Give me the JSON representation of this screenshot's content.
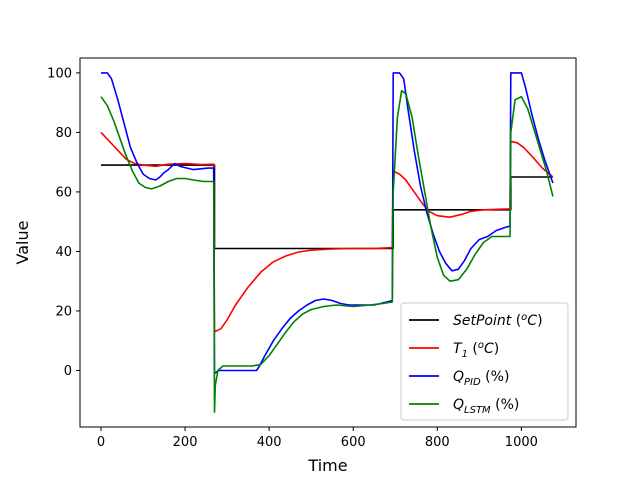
{
  "chart_data": {
    "type": "line",
    "title": "",
    "xlabel": "Time",
    "ylabel": "Value",
    "xlim": [
      -50,
      1130
    ],
    "ylim": [
      -19,
      105
    ],
    "xticks": [
      0,
      200,
      400,
      600,
      800,
      1000
    ],
    "yticks": [
      0,
      20,
      40,
      60,
      80,
      100
    ],
    "legend_position": "bottom-right",
    "series": [
      {
        "key": "setpoint",
        "legend": {
          "main": "SetPoint",
          "sub": "",
          "suffix": " (°C)",
          "sup": "o"
        },
        "color": "#000000",
        "points": [
          [
            0,
            69
          ],
          [
            270,
            69
          ],
          [
            270,
            41
          ],
          [
            695,
            41
          ],
          [
            695,
            54
          ],
          [
            975,
            54
          ],
          [
            975,
            65
          ],
          [
            1075,
            65
          ]
        ]
      },
      {
        "key": "t1",
        "legend": {
          "main": "T",
          "sub": "1",
          "suffix": " (°C)",
          "sup": "o"
        },
        "color": "#ff0000",
        "points": [
          [
            0,
            80
          ],
          [
            20,
            77
          ],
          [
            40,
            74
          ],
          [
            60,
            71
          ],
          [
            80,
            69.5
          ],
          [
            100,
            69
          ],
          [
            130,
            68.6
          ],
          [
            160,
            69.3
          ],
          [
            200,
            69.5
          ],
          [
            240,
            69.2
          ],
          [
            268,
            69.3
          ],
          [
            270,
            13
          ],
          [
            285,
            14
          ],
          [
            300,
            17
          ],
          [
            320,
            22
          ],
          [
            350,
            28
          ],
          [
            380,
            33
          ],
          [
            410,
            36.5
          ],
          [
            440,
            38.5
          ],
          [
            470,
            39.8
          ],
          [
            500,
            40.4
          ],
          [
            550,
            40.8
          ],
          [
            600,
            41
          ],
          [
            650,
            41
          ],
          [
            693,
            41.3
          ],
          [
            695,
            67
          ],
          [
            710,
            66
          ],
          [
            725,
            64
          ],
          [
            745,
            60
          ],
          [
            765,
            56
          ],
          [
            780,
            53.5
          ],
          [
            800,
            52
          ],
          [
            830,
            51.5
          ],
          [
            860,
            52.5
          ],
          [
            880,
            53.5
          ],
          [
            910,
            54
          ],
          [
            950,
            54.2
          ],
          [
            973,
            54.3
          ],
          [
            975,
            77
          ],
          [
            990,
            76.5
          ],
          [
            1005,
            75
          ],
          [
            1025,
            72
          ],
          [
            1050,
            68
          ],
          [
            1075,
            65
          ]
        ]
      },
      {
        "key": "qpid",
        "legend": {
          "main": "Q",
          "sub": "PID",
          "suffix": " (%)",
          "sup": ""
        },
        "color": "#0000ff",
        "points": [
          [
            0,
            100
          ],
          [
            15,
            100
          ],
          [
            25,
            98
          ],
          [
            40,
            91
          ],
          [
            55,
            83
          ],
          [
            70,
            75
          ],
          [
            85,
            70
          ],
          [
            100,
            66
          ],
          [
            115,
            64.5
          ],
          [
            130,
            64
          ],
          [
            140,
            65
          ],
          [
            150,
            66.5
          ],
          [
            160,
            67.5
          ],
          [
            175,
            69.5
          ],
          [
            190,
            68.5
          ],
          [
            205,
            68
          ],
          [
            220,
            67.5
          ],
          [
            240,
            67.8
          ],
          [
            255,
            68
          ],
          [
            268,
            68
          ],
          [
            270,
            -1
          ],
          [
            280,
            0
          ],
          [
            300,
            0
          ],
          [
            330,
            0
          ],
          [
            370,
            0
          ],
          [
            375,
            1
          ],
          [
            390,
            5
          ],
          [
            410,
            10
          ],
          [
            430,
            14
          ],
          [
            450,
            17.5
          ],
          [
            470,
            20
          ],
          [
            490,
            22
          ],
          [
            510,
            23.5
          ],
          [
            530,
            24
          ],
          [
            550,
            23.5
          ],
          [
            570,
            22.5
          ],
          [
            590,
            22
          ],
          [
            620,
            22
          ],
          [
            650,
            22
          ],
          [
            680,
            23
          ],
          [
            693,
            23.5
          ],
          [
            695,
            100
          ],
          [
            710,
            100
          ],
          [
            720,
            98
          ],
          [
            730,
            88
          ],
          [
            745,
            74
          ],
          [
            760,
            62
          ],
          [
            775,
            53
          ],
          [
            790,
            46
          ],
          [
            805,
            40
          ],
          [
            820,
            36
          ],
          [
            835,
            33.5
          ],
          [
            850,
            34
          ],
          [
            865,
            37
          ],
          [
            880,
            41
          ],
          [
            900,
            44
          ],
          [
            920,
            45
          ],
          [
            940,
            47
          ],
          [
            960,
            48
          ],
          [
            973,
            48.5
          ],
          [
            975,
            100
          ],
          [
            1000,
            100
          ],
          [
            1010,
            95
          ],
          [
            1025,
            86
          ],
          [
            1040,
            78
          ],
          [
            1055,
            71
          ],
          [
            1075,
            63
          ]
        ]
      },
      {
        "key": "qlstm",
        "legend": {
          "main": "Q",
          "sub": "LSTM",
          "suffix": " (%)",
          "sup": ""
        },
        "color": "#008000",
        "points": [
          [
            0,
            92
          ],
          [
            15,
            89
          ],
          [
            30,
            84
          ],
          [
            45,
            78
          ],
          [
            60,
            72
          ],
          [
            75,
            67
          ],
          [
            90,
            63
          ],
          [
            105,
            61.5
          ],
          [
            120,
            61
          ],
          [
            140,
            62
          ],
          [
            160,
            63.5
          ],
          [
            180,
            64.5
          ],
          [
            200,
            64.5
          ],
          [
            220,
            64
          ],
          [
            245,
            63.5
          ],
          [
            268,
            63.5
          ],
          [
            270,
            -14
          ],
          [
            272,
            -5
          ],
          [
            278,
            0
          ],
          [
            290,
            1.5
          ],
          [
            320,
            1.5
          ],
          [
            360,
            1.5
          ],
          [
            380,
            2
          ],
          [
            400,
            5
          ],
          [
            420,
            9
          ],
          [
            440,
            13
          ],
          [
            460,
            16.5
          ],
          [
            480,
            19
          ],
          [
            500,
            20.5
          ],
          [
            530,
            21.5
          ],
          [
            560,
            22
          ],
          [
            600,
            21.5
          ],
          [
            640,
            22
          ],
          [
            670,
            22.5
          ],
          [
            693,
            23
          ],
          [
            695,
            60
          ],
          [
            705,
            85
          ],
          [
            715,
            94
          ],
          [
            725,
            93
          ],
          [
            740,
            85
          ],
          [
            755,
            72
          ],
          [
            770,
            60
          ],
          [
            785,
            48
          ],
          [
            800,
            38
          ],
          [
            815,
            32
          ],
          [
            830,
            30
          ],
          [
            850,
            30.5
          ],
          [
            870,
            34
          ],
          [
            890,
            39
          ],
          [
            910,
            43
          ],
          [
            930,
            45
          ],
          [
            950,
            45
          ],
          [
            973,
            45
          ],
          [
            975,
            80
          ],
          [
            985,
            91
          ],
          [
            1000,
            92
          ],
          [
            1015,
            88
          ],
          [
            1030,
            81
          ],
          [
            1045,
            74
          ],
          [
            1060,
            67
          ],
          [
            1075,
            58.5
          ]
        ]
      }
    ]
  }
}
